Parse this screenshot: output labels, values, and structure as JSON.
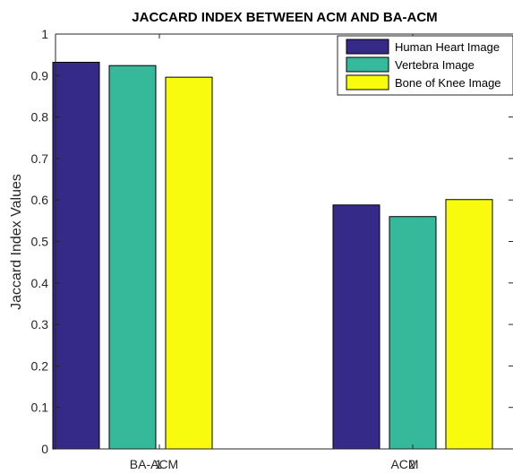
{
  "chart_data": {
    "type": "bar",
    "title": "JACCARD INDEX BETWEEN ACM AND BA-ACM",
    "xlabel": "",
    "ylabel": "Jaccard Index Values",
    "categories": [
      "BA-ACM",
      "ACM"
    ],
    "x_tick_overlap_labels": [
      "1",
      "2"
    ],
    "ylim": [
      0,
      1
    ],
    "yticks": [
      0,
      0.1,
      0.2,
      0.3,
      0.4,
      0.5,
      0.6,
      0.7,
      0.8,
      0.9,
      1
    ],
    "ytick_labels": [
      "0",
      "0.1",
      "0.2",
      "0.3",
      "0.4",
      "0.5",
      "0.6",
      "0.7",
      "0.8",
      "0.9",
      "1"
    ],
    "series": [
      {
        "name": "Human Heart Image",
        "color": "#352a87",
        "values": [
          0.932,
          0.588
        ]
      },
      {
        "name": "Vertebra Image",
        "color": "#35b99a",
        "values": [
          0.924,
          0.56
        ]
      },
      {
        "name": "Bone of Knee Image",
        "color": "#f9fb0e",
        "values": [
          0.896,
          0.601
        ]
      }
    ],
    "legend_position": "top-right",
    "grid": false
  }
}
